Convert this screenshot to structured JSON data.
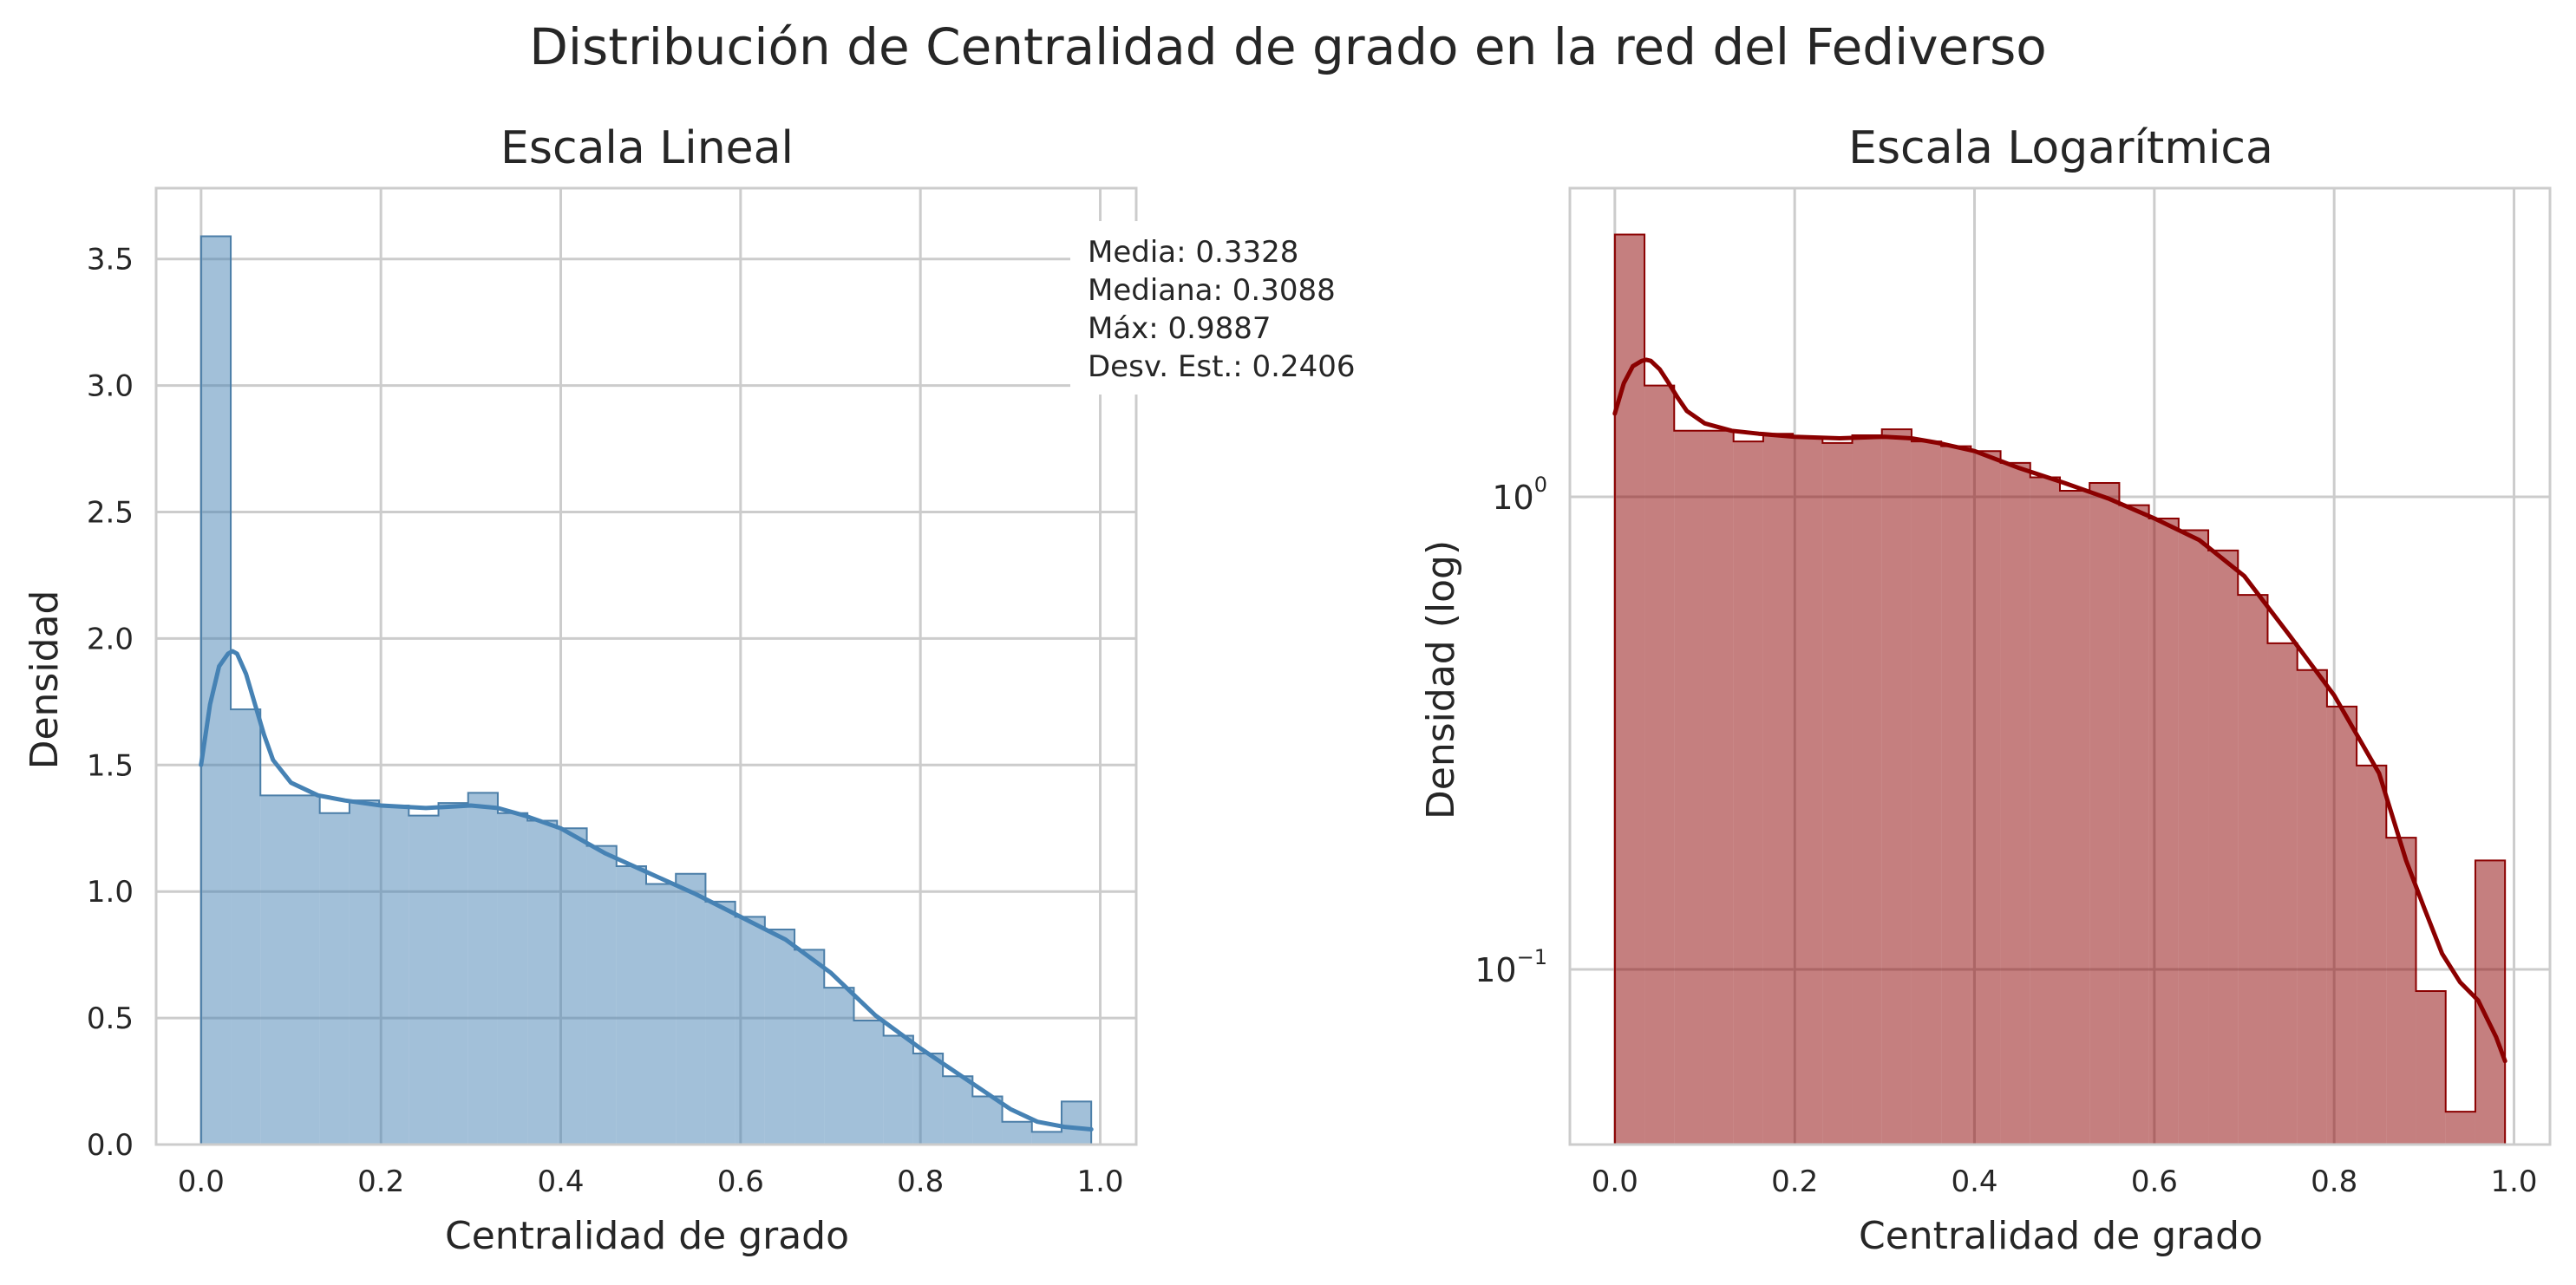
{
  "figure": {
    "title": "Distribución de Centralidad de grado en la red del Fediverso"
  },
  "colors": {
    "linear_fill": "#4682b4",
    "linear_edge": "#4b7ea8",
    "log_fill": "#8b0000",
    "log_edge": "#8b0000",
    "grid": "#cccccc",
    "spine": "#cccccc"
  },
  "chart_data": [
    {
      "type": "histogram",
      "title": "Escala Lineal",
      "xlabel": "Centralidad de grado",
      "ylabel": "Densidad",
      "yscale": "linear",
      "xlim": [
        -0.05,
        1.04
      ],
      "ylim": [
        0,
        3.78
      ],
      "xticks": [
        0.0,
        0.2,
        0.4,
        0.6,
        0.8,
        1.0
      ],
      "xtick_labels": [
        "0.0",
        "0.2",
        "0.4",
        "0.6",
        "0.8",
        "1.0"
      ],
      "yticks": [
        0.0,
        0.5,
        1.0,
        1.5,
        2.0,
        2.5,
        3.0,
        3.5
      ],
      "ytick_labels": [
        "0.0",
        "0.5",
        "1.0",
        "1.5",
        "2.0",
        "2.5",
        "3.0",
        "3.5"
      ],
      "grid": true,
      "bin_edges": [
        0.0,
        0.033,
        0.066,
        0.099,
        0.132,
        0.165,
        0.198,
        0.231,
        0.264,
        0.297,
        0.33,
        0.363,
        0.396,
        0.429,
        0.462,
        0.495,
        0.528,
        0.561,
        0.594,
        0.627,
        0.66,
        0.693,
        0.726,
        0.759,
        0.792,
        0.825,
        0.858,
        0.891,
        0.924,
        0.957,
        0.99
      ],
      "densities": [
        3.59,
        1.72,
        1.38,
        1.38,
        1.31,
        1.36,
        1.34,
        1.3,
        1.35,
        1.39,
        1.31,
        1.28,
        1.25,
        1.18,
        1.1,
        1.03,
        1.07,
        0.96,
        0.9,
        0.85,
        0.77,
        0.62,
        0.49,
        0.43,
        0.36,
        0.27,
        0.19,
        0.09,
        0.05,
        0.17
      ],
      "kde": {
        "x": [
          0.0,
          0.01,
          0.02,
          0.03,
          0.035,
          0.04,
          0.05,
          0.06,
          0.07,
          0.08,
          0.1,
          0.13,
          0.16,
          0.2,
          0.25,
          0.3,
          0.33,
          0.36,
          0.4,
          0.45,
          0.5,
          0.55,
          0.6,
          0.65,
          0.7,
          0.75,
          0.8,
          0.85,
          0.9,
          0.93,
          0.96,
          0.99
        ],
        "y": [
          1.5,
          1.74,
          1.89,
          1.94,
          1.95,
          1.94,
          1.86,
          1.74,
          1.62,
          1.52,
          1.43,
          1.38,
          1.36,
          1.34,
          1.33,
          1.34,
          1.33,
          1.3,
          1.25,
          1.15,
          1.07,
          0.99,
          0.9,
          0.81,
          0.68,
          0.51,
          0.38,
          0.26,
          0.14,
          0.09,
          0.07,
          0.06
        ]
      },
      "annotation": [
        "Media: 0.3328",
        "Mediana: 0.3088",
        "Máx: 0.9887",
        "Desv. Est.: 0.2406"
      ]
    },
    {
      "type": "histogram",
      "title": "Escala Logarítmica",
      "xlabel": "Centralidad de grado",
      "ylabel": "Densidad (log)",
      "yscale": "log",
      "xlim": [
        -0.05,
        1.04
      ],
      "ylim": [
        0.0426,
        4.5
      ],
      "xticks": [
        0.0,
        0.2,
        0.4,
        0.6,
        0.8,
        1.0
      ],
      "xtick_labels": [
        "0.0",
        "0.2",
        "0.4",
        "0.6",
        "0.8",
        "1.0"
      ],
      "yticks": [
        1,
        0.1
      ],
      "ytick_labels": [
        {
          "base": "10",
          "exp": "0"
        },
        {
          "base": "10",
          "exp": "−1"
        }
      ],
      "grid": true,
      "bin_edges": [
        0.0,
        0.033,
        0.066,
        0.099,
        0.132,
        0.165,
        0.198,
        0.231,
        0.264,
        0.297,
        0.33,
        0.363,
        0.396,
        0.429,
        0.462,
        0.495,
        0.528,
        0.561,
        0.594,
        0.627,
        0.66,
        0.693,
        0.726,
        0.759,
        0.792,
        0.825,
        0.858,
        0.891,
        0.924,
        0.957,
        0.99
      ],
      "densities": [
        3.59,
        1.72,
        1.38,
        1.38,
        1.31,
        1.36,
        1.34,
        1.3,
        1.35,
        1.39,
        1.31,
        1.28,
        1.25,
        1.18,
        1.1,
        1.03,
        1.07,
        0.96,
        0.9,
        0.85,
        0.77,
        0.62,
        0.49,
        0.43,
        0.36,
        0.27,
        0.19,
        0.09,
        0.05,
        0.17
      ],
      "kde": {
        "x": [
          0.0,
          0.01,
          0.02,
          0.03,
          0.035,
          0.04,
          0.05,
          0.06,
          0.07,
          0.08,
          0.1,
          0.13,
          0.16,
          0.2,
          0.25,
          0.3,
          0.33,
          0.36,
          0.4,
          0.45,
          0.5,
          0.55,
          0.6,
          0.65,
          0.7,
          0.75,
          0.8,
          0.85,
          0.88,
          0.9,
          0.92,
          0.94,
          0.96,
          0.98,
          0.99
        ],
        "y": [
          1.5,
          1.74,
          1.89,
          1.94,
          1.95,
          1.94,
          1.86,
          1.74,
          1.62,
          1.52,
          1.43,
          1.38,
          1.36,
          1.34,
          1.33,
          1.34,
          1.33,
          1.3,
          1.25,
          1.15,
          1.07,
          0.99,
          0.9,
          0.81,
          0.68,
          0.51,
          0.38,
          0.26,
          0.17,
          0.135,
          0.108,
          0.094,
          0.086,
          0.072,
          0.064
        ]
      }
    }
  ]
}
